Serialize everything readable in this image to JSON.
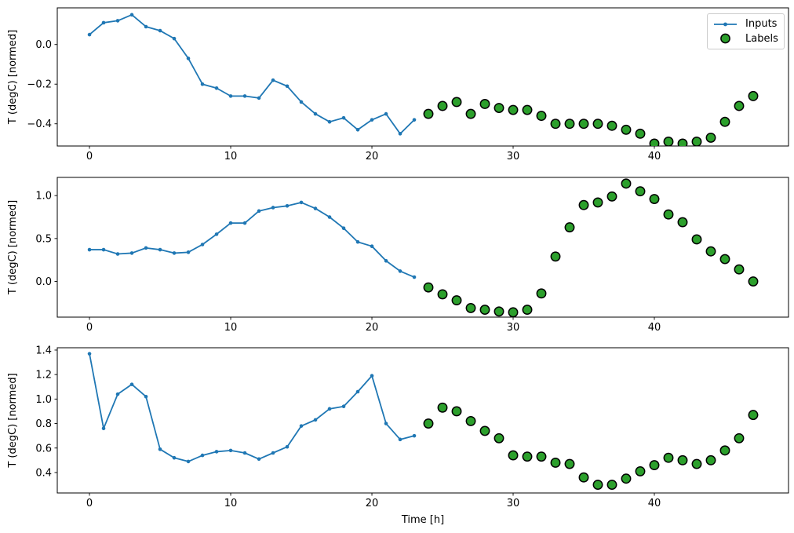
{
  "figure": {
    "background": "#ffffff",
    "text_color": "#000000",
    "axis_color": "#000000",
    "legend": {
      "position": "upper right",
      "entries": [
        {
          "label": "Inputs",
          "marker": "line-with-dot",
          "color": "#1f77b4"
        },
        {
          "label": "Labels",
          "marker": "filled-circle",
          "color": "#2ca02c",
          "edge_color": "#000000"
        }
      ]
    }
  },
  "chart_data": [
    {
      "type": "line",
      "title": "",
      "xlabel": "",
      "ylabel": "T (degC) [normed]",
      "grid": false,
      "legend_position": "upper right",
      "xlim": [
        -2.28,
        49.5
      ],
      "ylim": [
        -0.512,
        0.185
      ],
      "xticks": {
        "values": [
          0,
          10,
          20,
          30,
          40
        ],
        "labels": [
          "0",
          "10",
          "20",
          "30",
          "40"
        ]
      },
      "yticks": {
        "values": [
          0.0,
          -0.2,
          -0.4
        ],
        "labels": [
          "0.0",
          "−0.2",
          "−0.4"
        ]
      },
      "series": [
        {
          "name": "Inputs",
          "style": "line-marker",
          "color": "#1f77b4",
          "x": [
            0,
            1,
            2,
            3,
            4,
            5,
            6,
            7,
            8,
            9,
            10,
            11,
            12,
            13,
            14,
            15,
            16,
            17,
            18,
            19,
            20,
            21,
            22,
            23
          ],
          "y": [
            0.05,
            0.11,
            0.12,
            0.15,
            0.09,
            0.07,
            0.03,
            -0.07,
            -0.2,
            -0.22,
            -0.26,
            -0.26,
            -0.27,
            -0.18,
            -0.21,
            -0.29,
            -0.35,
            -0.39,
            -0.37,
            -0.43,
            -0.38,
            -0.35,
            -0.45,
            -0.38
          ]
        },
        {
          "name": "Labels",
          "style": "scatter",
          "color": "#2ca02c",
          "edge_color": "#000000",
          "x": [
            24,
            25,
            26,
            27,
            28,
            29,
            30,
            31,
            32,
            33,
            34,
            35,
            36,
            37,
            38,
            39,
            40,
            41,
            42,
            43,
            44,
            45,
            46,
            47
          ],
          "y": [
            -0.35,
            -0.31,
            -0.29,
            -0.35,
            -0.3,
            -0.32,
            -0.33,
            -0.33,
            -0.36,
            -0.4,
            -0.4,
            -0.4,
            -0.4,
            -0.41,
            -0.43,
            -0.45,
            -0.5,
            -0.49,
            -0.5,
            -0.49,
            -0.47,
            -0.39,
            -0.31,
            -0.26
          ]
        }
      ]
    },
    {
      "type": "line",
      "title": "",
      "xlabel": "",
      "ylabel": "T (degC) [normed]",
      "grid": false,
      "legend_position": null,
      "xlim": [
        -2.28,
        49.5
      ],
      "ylim": [
        -0.416,
        1.212
      ],
      "xticks": {
        "values": [
          0,
          10,
          20,
          30,
          40
        ],
        "labels": [
          "0",
          "10",
          "20",
          "30",
          "40"
        ]
      },
      "yticks": {
        "values": [
          1.0,
          0.5,
          0.0
        ],
        "labels": [
          "1.0",
          "0.5",
          "0.0"
        ]
      },
      "series": [
        {
          "name": "Inputs",
          "style": "line-marker",
          "color": "#1f77b4",
          "x": [
            0,
            1,
            2,
            3,
            4,
            5,
            6,
            7,
            8,
            9,
            10,
            11,
            12,
            13,
            14,
            15,
            16,
            17,
            18,
            19,
            20,
            21,
            22,
            23
          ],
          "y": [
            0.37,
            0.37,
            0.32,
            0.33,
            0.39,
            0.37,
            0.33,
            0.34,
            0.43,
            0.55,
            0.68,
            0.68,
            0.82,
            0.86,
            0.88,
            0.92,
            0.85,
            0.75,
            0.62,
            0.46,
            0.41,
            0.24,
            0.12,
            0.05
          ]
        },
        {
          "name": "Labels",
          "style": "scatter",
          "color": "#2ca02c",
          "edge_color": "#000000",
          "x": [
            24,
            25,
            26,
            27,
            28,
            29,
            30,
            31,
            32,
            33,
            34,
            35,
            36,
            37,
            38,
            39,
            40,
            41,
            42,
            43,
            44,
            45,
            46,
            47
          ],
          "y": [
            -0.07,
            -0.15,
            -0.22,
            -0.31,
            -0.33,
            -0.35,
            -0.36,
            -0.33,
            -0.14,
            0.29,
            0.63,
            0.89,
            0.92,
            0.99,
            1.14,
            1.05,
            0.96,
            0.78,
            0.69,
            0.49,
            0.35,
            0.26,
            0.14,
            0.0
          ]
        }
      ]
    },
    {
      "type": "line",
      "title": "",
      "xlabel": "Time [h]",
      "ylabel": "T (degC) [normed]",
      "grid": false,
      "legend_position": null,
      "xlim": [
        -2.28,
        49.5
      ],
      "ylim": [
        0.233,
        1.419
      ],
      "xticks": {
        "values": [
          0,
          10,
          20,
          30,
          40
        ],
        "labels": [
          "0",
          "10",
          "20",
          "30",
          "40"
        ]
      },
      "yticks": {
        "values": [
          1.4,
          1.2,
          1.0,
          0.8,
          0.6,
          0.4
        ],
        "labels": [
          "1.4",
          "1.2",
          "1.0",
          "0.8",
          "0.6",
          "0.4"
        ]
      },
      "series": [
        {
          "name": "Inputs",
          "style": "line-marker",
          "color": "#1f77b4",
          "x": [
            0,
            1,
            2,
            3,
            4,
            5,
            6,
            7,
            8,
            9,
            10,
            11,
            12,
            13,
            14,
            15,
            16,
            17,
            18,
            19,
            20,
            21,
            22,
            23
          ],
          "y": [
            1.37,
            0.76,
            1.04,
            1.12,
            1.02,
            0.59,
            0.52,
            0.49,
            0.54,
            0.57,
            0.58,
            0.56,
            0.51,
            0.56,
            0.61,
            0.78,
            0.83,
            0.92,
            0.94,
            1.06,
            1.19,
            0.8,
            0.67,
            0.7
          ]
        },
        {
          "name": "Labels",
          "style": "scatter",
          "color": "#2ca02c",
          "edge_color": "#000000",
          "x": [
            24,
            25,
            26,
            27,
            28,
            29,
            30,
            31,
            32,
            33,
            34,
            35,
            36,
            37,
            38,
            39,
            40,
            41,
            42,
            43,
            44,
            45,
            46,
            47
          ],
          "y": [
            0.8,
            0.93,
            0.9,
            0.82,
            0.74,
            0.68,
            0.54,
            0.53,
            0.53,
            0.48,
            0.47,
            0.36,
            0.3,
            0.3,
            0.35,
            0.41,
            0.46,
            0.52,
            0.5,
            0.47,
            0.5,
            0.58,
            0.68,
            0.87
          ]
        }
      ]
    }
  ]
}
